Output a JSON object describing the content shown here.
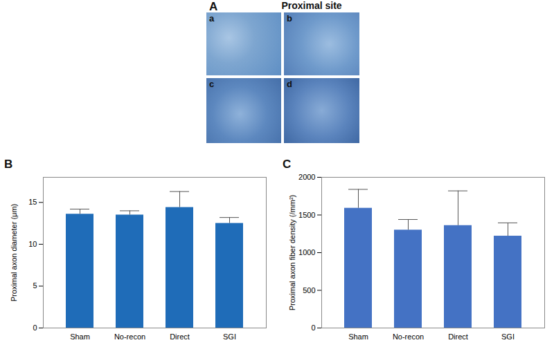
{
  "figure": {
    "panel_a": {
      "label": "A",
      "title": "Proximal site",
      "images": [
        "a",
        "b",
        "c",
        "d"
      ]
    }
  },
  "chart_data": [
    {
      "type": "bar",
      "title": "B",
      "y_label": "Proximal axon diameter (μm)",
      "categories": [
        "Sham",
        "No-recon",
        "Direct",
        "SGI"
      ],
      "values": [
        13.6,
        13.5,
        14.4,
        12.5
      ],
      "errors": [
        0.6,
        0.5,
        1.9,
        0.7
      ],
      "color": "#1f6cb8",
      "ylim": [
        0,
        18
      ],
      "yticks": [
        0,
        5,
        10,
        15
      ],
      "grid": false
    },
    {
      "type": "bar",
      "title": "C",
      "y_label": "Proximal axon fiber density (/mm²)",
      "categories": [
        "Sham",
        "No-recon",
        "Direct",
        "SGI"
      ],
      "values": [
        1590,
        1300,
        1360,
        1220
      ],
      "errors": [
        250,
        140,
        460,
        175
      ],
      "color": "#4472c4",
      "ylim": [
        0,
        2000
      ],
      "yticks": [
        0,
        500,
        1000,
        1500,
        2000
      ],
      "grid": false
    }
  ]
}
